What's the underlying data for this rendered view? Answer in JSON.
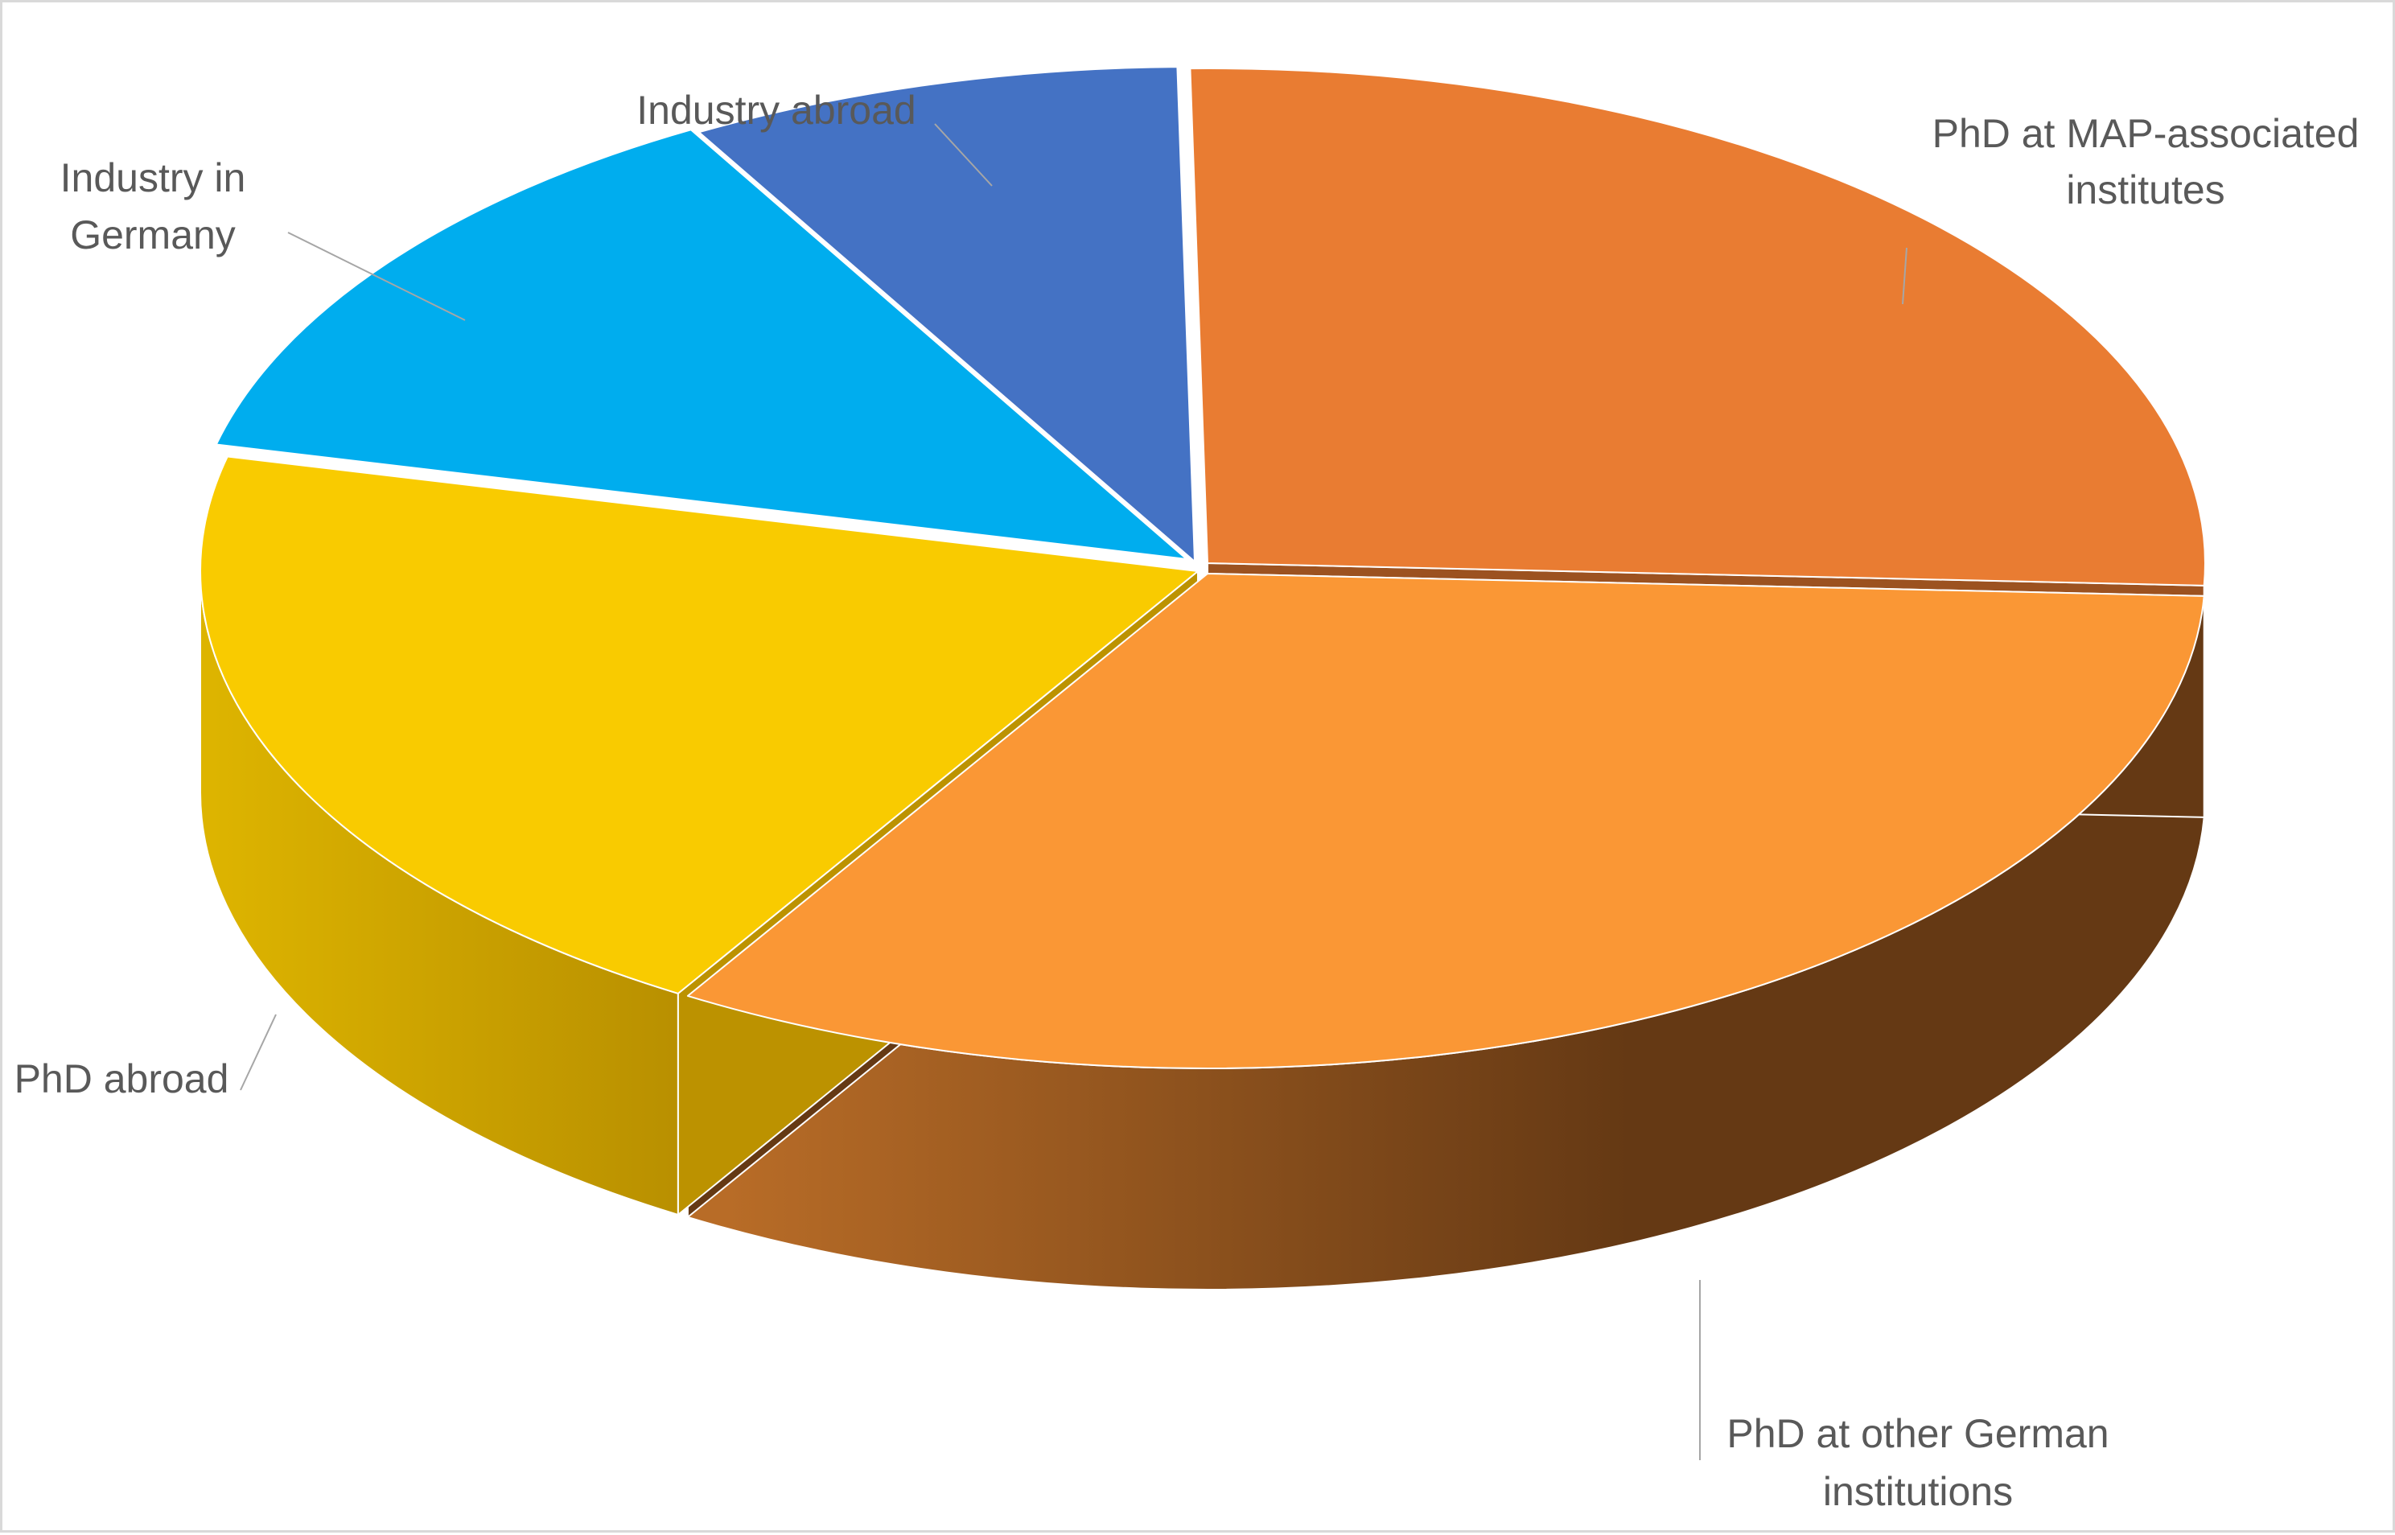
{
  "chart_data": {
    "type": "pie",
    "style": "3d-exploded",
    "legend": "none",
    "slices": [
      {
        "label": "PhD at MAP-associated institutes",
        "label_lines": [
          "PhD at MAP-associated",
          "institutes"
        ],
        "value": 26,
        "color": "#E97C32",
        "side_color": "#9C5220"
      },
      {
        "label": "PhD at other German institutions",
        "label_lines": [
          "PhD at other German",
          "institutions"
        ],
        "value": 33,
        "color": "#FA9735",
        "side_color": "#653914"
      },
      {
        "label": "PhD abroad",
        "label_lines": [
          "PhD abroad"
        ],
        "value": 20,
        "color": "#F9CB00",
        "side_color": "#BC9200"
      },
      {
        "label": "Industry in Germany",
        "label_lines": [
          "Industry in",
          "Germany"
        ],
        "value": 13,
        "color": "#00ADEE",
        "side_color": "#0078A8"
      },
      {
        "label": "Industry abroad",
        "label_lines": [
          "Industry abroad"
        ],
        "value": 8,
        "color": "#4472C4",
        "side_color": "#2F528F"
      }
    ]
  }
}
